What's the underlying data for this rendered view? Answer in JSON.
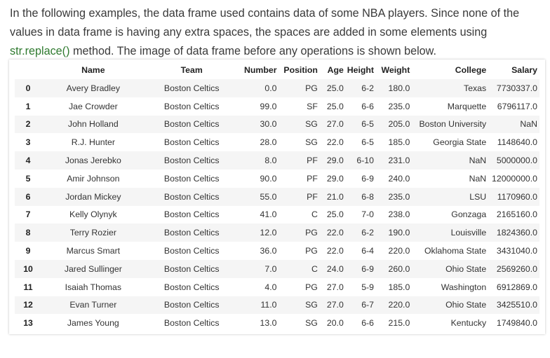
{
  "intro": {
    "text_before": "In the following examples, the data frame used contains data of some NBA players. Since none of the values in data frame is having any extra spaces, the spaces are added in some elements using ",
    "code": "str.replace()",
    "text_after": " method. The image of data frame before any operations is shown below."
  },
  "table": {
    "columns": [
      "",
      "Name",
      "Team",
      "Number",
      "Position",
      "Age",
      "Height",
      "Weight",
      "College",
      "Salary"
    ],
    "rows": [
      [
        "0",
        "Avery Bradley",
        "Boston Celtics",
        "0.0",
        "PG",
        "25.0",
        "6-2",
        "180.0",
        "Texas",
        "7730337.0"
      ],
      [
        "1",
        "Jae Crowder",
        "Boston Celtics",
        "99.0",
        "SF",
        "25.0",
        "6-6",
        "235.0",
        "Marquette",
        "6796117.0"
      ],
      [
        "2",
        "John Holland",
        "Boston Celtics",
        "30.0",
        "SG",
        "27.0",
        "6-5",
        "205.0",
        "Boston University",
        "NaN"
      ],
      [
        "3",
        "R.J. Hunter",
        "Boston Celtics",
        "28.0",
        "SG",
        "22.0",
        "6-5",
        "185.0",
        "Georgia State",
        "1148640.0"
      ],
      [
        "4",
        "Jonas Jerebko",
        "Boston Celtics",
        "8.0",
        "PF",
        "29.0",
        "6-10",
        "231.0",
        "NaN",
        "5000000.0"
      ],
      [
        "5",
        "Amir Johnson",
        "Boston Celtics",
        "90.0",
        "PF",
        "29.0",
        "6-9",
        "240.0",
        "NaN",
        "12000000.0"
      ],
      [
        "6",
        "Jordan Mickey",
        "Boston Celtics",
        "55.0",
        "PF",
        "21.0",
        "6-8",
        "235.0",
        "LSU",
        "1170960.0"
      ],
      [
        "7",
        "Kelly Olynyk",
        "Boston Celtics",
        "41.0",
        "C",
        "25.0",
        "7-0",
        "238.0",
        "Gonzaga",
        "2165160.0"
      ],
      [
        "8",
        "Terry Rozier",
        "Boston Celtics",
        "12.0",
        "PG",
        "22.0",
        "6-2",
        "190.0",
        "Louisville",
        "1824360.0"
      ],
      [
        "9",
        "Marcus Smart",
        "Boston Celtics",
        "36.0",
        "PG",
        "22.0",
        "6-4",
        "220.0",
        "Oklahoma State",
        "3431040.0"
      ],
      [
        "10",
        "Jared Sullinger",
        "Boston Celtics",
        "7.0",
        "C",
        "24.0",
        "6-9",
        "260.0",
        "Ohio State",
        "2569260.0"
      ],
      [
        "11",
        "Isaiah Thomas",
        "Boston Celtics",
        "4.0",
        "PG",
        "27.0",
        "5-9",
        "185.0",
        "Washington",
        "6912869.0"
      ],
      [
        "12",
        "Evan Turner",
        "Boston Celtics",
        "11.0",
        "SG",
        "27.0",
        "6-7",
        "220.0",
        "Ohio State",
        "3425510.0"
      ],
      [
        "13",
        "James Young",
        "Boston Celtics",
        "13.0",
        "SG",
        "20.0",
        "6-6",
        "215.0",
        "Kentucky",
        "1749840.0"
      ]
    ]
  }
}
